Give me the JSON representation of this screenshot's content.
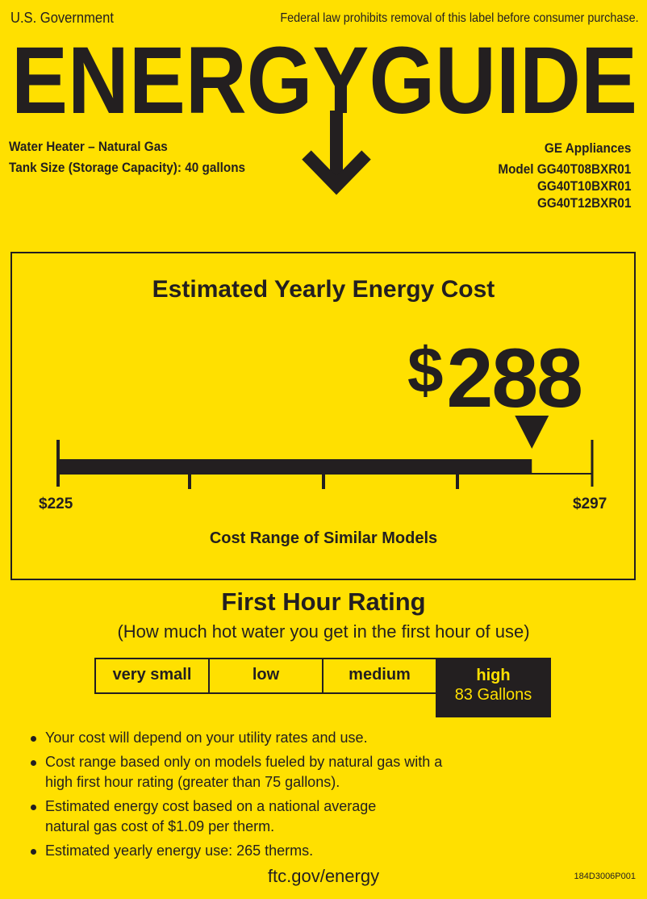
{
  "header": {
    "government": "U.S. Government",
    "law_notice": "Federal law prohibits removal of this label before consumer purchase.",
    "logo_text": "ENERGYGUIDE"
  },
  "product": {
    "type": "Water Heater – Natural Gas",
    "tank_size": "Tank Size (Storage Capacity): 40 gallons",
    "brand": "GE Appliances",
    "model_prefix": "Model",
    "models": [
      "GG40T08BXR01",
      "GG40T10BXR01",
      "GG40T12BXR01"
    ]
  },
  "cost": {
    "title": "Estimated Yearly Energy Cost",
    "currency": "$",
    "value": "288",
    "value_num": 288,
    "range_min": 225,
    "range_max": 297,
    "min_label": "$225",
    "max_label": "$297",
    "range_label": "Cost Range of Similar Models"
  },
  "first_hour_rating": {
    "title": "First Hour Rating",
    "subtitle": "(How much hot water you get in the first hour of use)",
    "categories": [
      "very small",
      "low",
      "medium",
      "high"
    ],
    "selected": "high",
    "selected_value": "83 Gallons"
  },
  "notes": [
    "Your cost will depend on your utility rates and use.",
    "Cost range based only on models fueled by natural gas with a high first hour rating (greater than 75 gallons).",
    "Estimated energy cost based on a national average natural gas cost of $1.09 per therm.",
    "Estimated yearly energy use: 265 therms."
  ],
  "footer": {
    "url": "ftc.gov/energy",
    "code": "184D3006P001"
  },
  "colors": {
    "background": "#FFE000",
    "ink": "#231f20"
  }
}
